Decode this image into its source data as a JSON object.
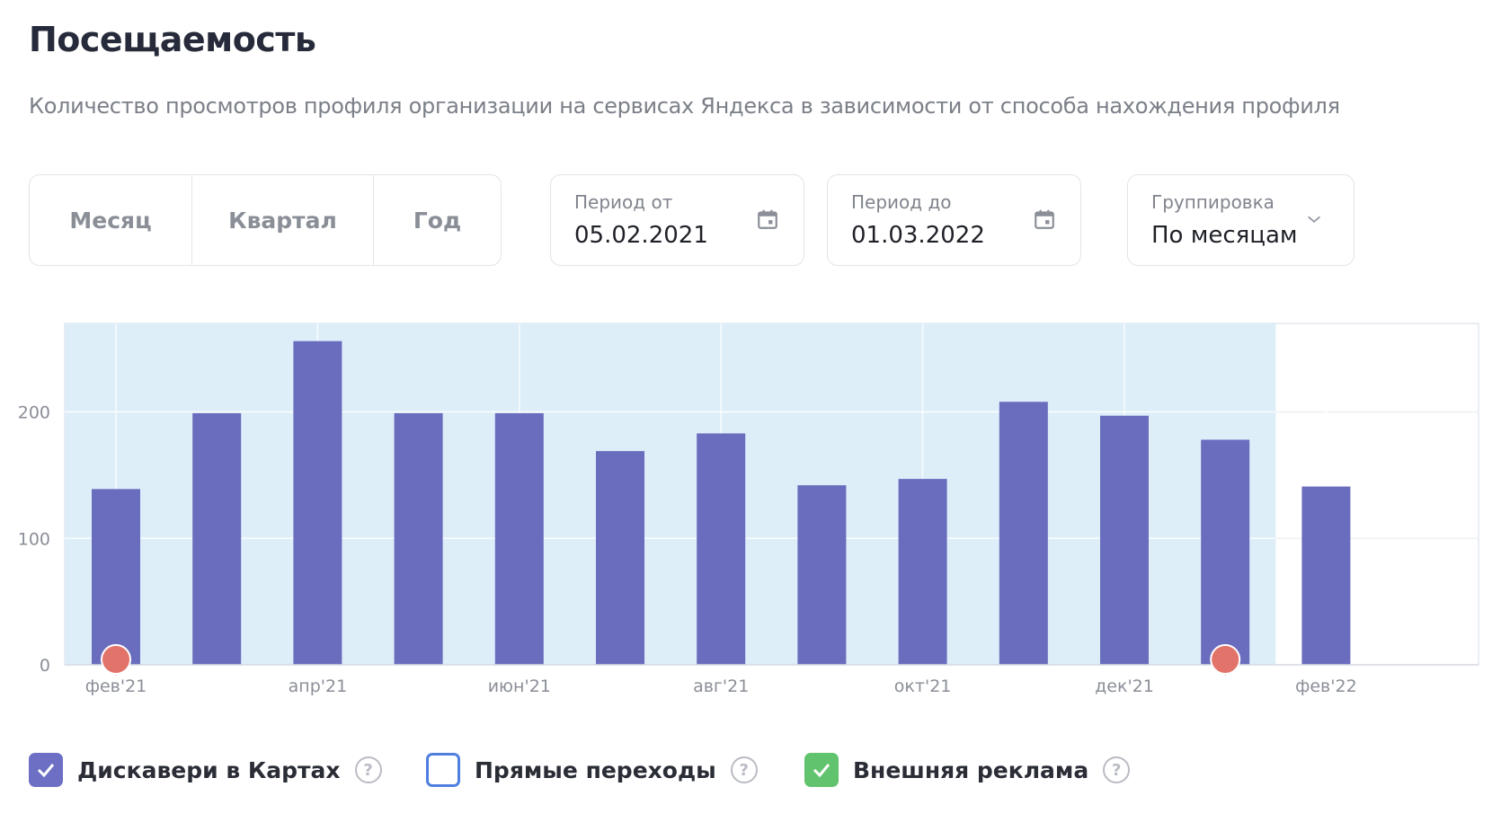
{
  "header": {
    "title": "Посещаемость",
    "subtitle": "Количество просмотров профиля организации на сервисах Яндекса в зависимости от способа нахождения профиля"
  },
  "period_tabs": [
    "Месяц",
    "Квартал",
    "Год"
  ],
  "filters": {
    "from": {
      "label": "Период от",
      "value": "05.02.2021",
      "icon": "calendar-icon"
    },
    "to": {
      "label": "Период до",
      "value": "01.03.2022",
      "icon": "calendar-icon"
    },
    "grouping": {
      "label": "Группировка",
      "value": "По месяцам",
      "icon": "chevron-down-icon"
    }
  },
  "legend": [
    {
      "label": "Дискавери в Картах",
      "checked": true,
      "color": "#6c6fc4"
    },
    {
      "label": "Прямые переходы",
      "checked": false,
      "color": "#4e7fe0"
    },
    {
      "label": "Внешняя реклама",
      "checked": true,
      "color": "#62c36e"
    }
  ],
  "chart_data": {
    "type": "bar",
    "categories": [
      "фев'21",
      "мар'21",
      "апр'21",
      "май'21",
      "июн'21",
      "июл'21",
      "авг'21",
      "сен'21",
      "окт'21",
      "ноя'21",
      "дек'21",
      "янв'22",
      "фев'22"
    ],
    "tick_labels": [
      "фев'21",
      "апр'21",
      "июн'21",
      "авг'21",
      "окт'21",
      "дек'21",
      "фев'22"
    ],
    "values": [
      139,
      199,
      256,
      199,
      199,
      169,
      183,
      142,
      147,
      208,
      197,
      178,
      141
    ],
    "ylim": [
      0,
      270
    ],
    "yticks": [
      0,
      100,
      200
    ],
    "grid": true,
    "bar_color": "#6a6cbd",
    "selected_range": [
      "фев'21",
      "янв'22"
    ],
    "selected_color": "#ddeef9",
    "markers": [
      {
        "category": "фев'21",
        "color": "#e2736a"
      },
      {
        "category": "янв'22",
        "color": "#e2736a"
      }
    ]
  }
}
